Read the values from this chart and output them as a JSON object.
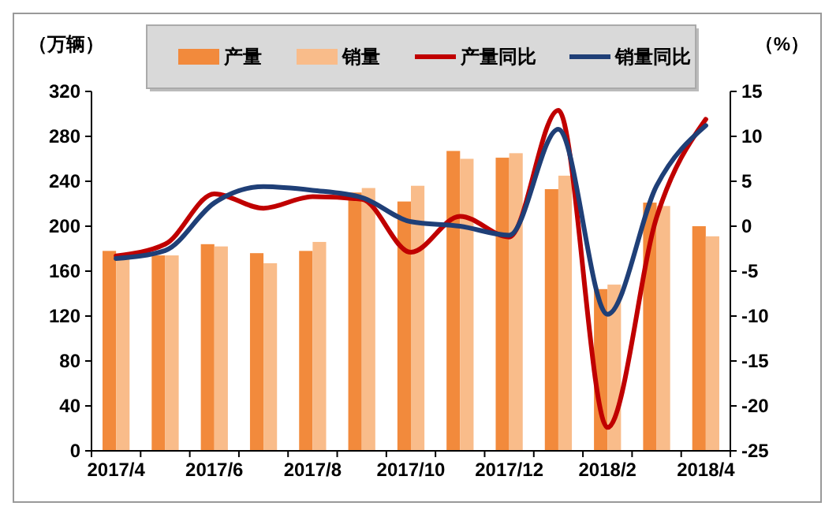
{
  "chart_data": {
    "type": "bar",
    "ylabel": "（万辆）",
    "y2label": "（%）",
    "categories": [
      "2017/4",
      null,
      "2017/6",
      null,
      "2017/8",
      null,
      "2017/10",
      null,
      "2017/12",
      null,
      "2018/2",
      null,
      "2018/4"
    ],
    "series": [
      {
        "name": "产量",
        "color": "#f28a3c",
        "values": [
          178,
          174,
          184,
          176,
          178,
          230,
          222,
          267,
          261,
          233,
          144,
          221,
          200
        ]
      },
      {
        "name": "销量",
        "color": "#f9bc8a",
        "values": [
          172,
          174,
          182,
          167,
          186,
          234,
          236,
          260,
          265,
          245,
          148,
          218,
          191
        ]
      },
      {
        "name": "产量同比",
        "type": "line",
        "axis": "y2",
        "color": "#c00000",
        "values": [
          -3.3,
          -2.0,
          3.6,
          2.0,
          3.3,
          3.0,
          -2.9,
          1.1,
          -1.2,
          12.9,
          -22.4,
          1.0,
          11.9
        ]
      },
      {
        "name": "销量同比",
        "type": "line",
        "axis": "y2",
        "color": "#1f3f77",
        "values": [
          -3.6,
          -2.7,
          2.6,
          4.4,
          4.0,
          3.2,
          0.5,
          0.0,
          -1.0,
          10.8,
          -9.8,
          4.5,
          11.2
        ]
      }
    ],
    "ylim": [
      0,
      320
    ],
    "yticks": [
      0,
      40,
      80,
      120,
      160,
      200,
      240,
      280,
      320
    ],
    "y2lim": [
      -25,
      15
    ],
    "y2ticks": [
      -25,
      -20,
      -15,
      -10,
      -5,
      0,
      5,
      10,
      15
    ],
    "legend": "top",
    "grid": false
  }
}
